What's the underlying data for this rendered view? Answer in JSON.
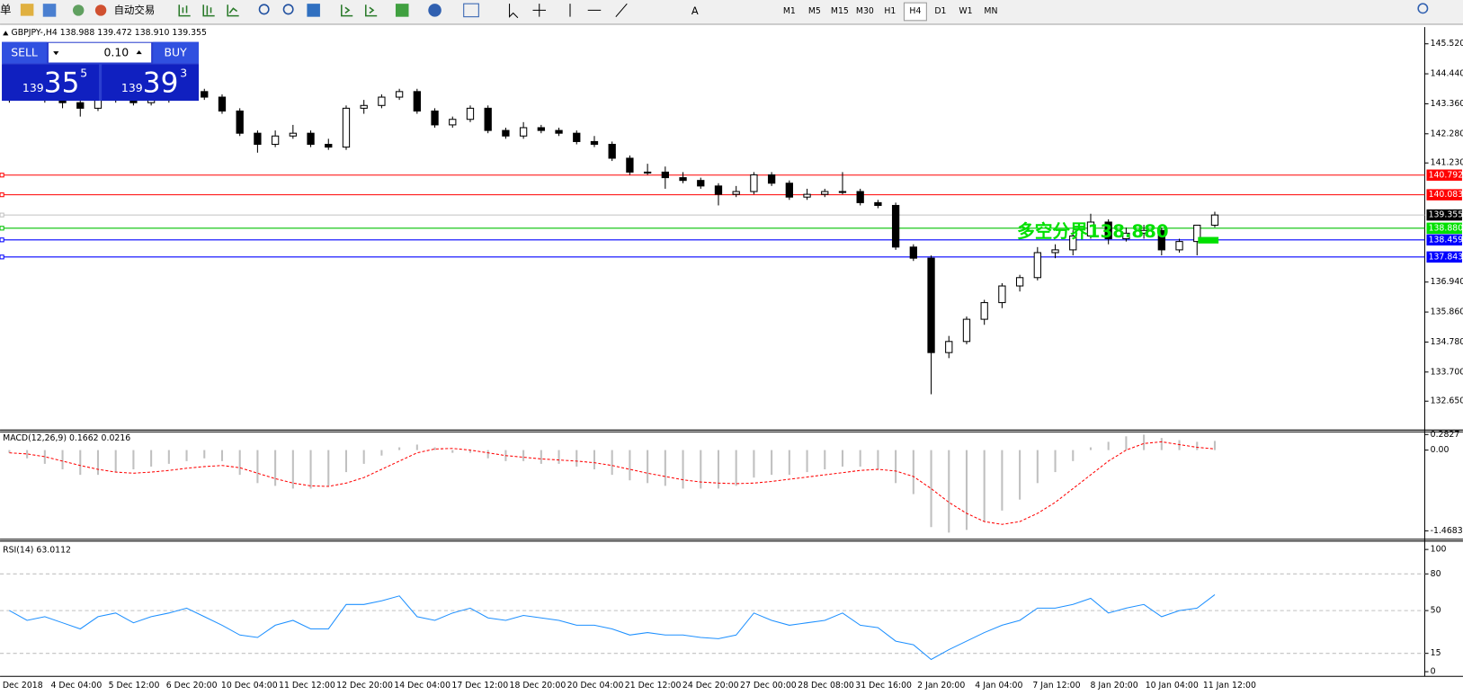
{
  "toolbar": {
    "partial_label": "单",
    "auto_trading": "自动交易",
    "timeframes": [
      "M1",
      "M5",
      "M15",
      "M30",
      "H1",
      "H4",
      "D1",
      "W1",
      "MN"
    ]
  },
  "trade_panel": {
    "sell": "SELL",
    "buy": "BUY",
    "lots": "0.10",
    "sell_price": {
      "prefix": "139",
      "pips": "35",
      "fraction": "5"
    },
    "buy_price": {
      "prefix": "139",
      "pips": "39",
      "fraction": "3"
    }
  },
  "chart": {
    "symbol_header": "GBPJPY-,H4  138.988 139.472 138.910 139.355",
    "ylim": [
      131.61,
      146.09
    ],
    "yticks": [
      {
        "value": 145.52,
        "label": "145.520"
      },
      {
        "value": 144.44,
        "label": "144.440"
      },
      {
        "value": 143.36,
        "label": "143.360"
      },
      {
        "value": 142.28,
        "label": "142.280"
      },
      {
        "value": 141.23,
        "label": "141.230"
      },
      {
        "value": 136.94,
        "label": "136.940"
      },
      {
        "value": 135.86,
        "label": "135.860"
      },
      {
        "value": 134.78,
        "label": "134.780"
      },
      {
        "value": 133.7,
        "label": "133.700"
      },
      {
        "value": 132.65,
        "label": "132.650"
      }
    ],
    "levels": [
      {
        "value": 140.792,
        "label": "140.792",
        "color": "#ff0000",
        "label_bg": "#ff0000"
      },
      {
        "value": 140.083,
        "label": "140.083",
        "color": "#ff0000",
        "label_bg": "#ff0000"
      },
      {
        "value": 139.355,
        "label": "139.355",
        "color": "#c0c0c0",
        "label_bg": "#000000"
      },
      {
        "value": 138.88,
        "label": "138.880",
        "color": "#00c000",
        "label_bg": "#00e000"
      },
      {
        "value": 138.459,
        "label": "138.459",
        "color": "#0000ff",
        "label_bg": "#0000ff"
      },
      {
        "value": 137.843,
        "label": "137.843",
        "color": "#0000ff",
        "label_bg": "#0000ff"
      }
    ],
    "annotation": "多空分界138.880",
    "ohlc": [
      [
        143.5,
        143.8,
        143.4,
        143.6
      ],
      [
        143.6,
        143.9,
        143.5,
        143.8
      ],
      [
        143.8,
        143.9,
        143.4,
        143.5
      ],
      [
        143.5,
        143.6,
        143.2,
        143.4
      ],
      [
        143.4,
        143.5,
        142.9,
        143.2
      ],
      [
        143.2,
        143.6,
        143.1,
        143.5
      ],
      [
        143.5,
        143.8,
        143.4,
        143.7
      ],
      [
        143.7,
        143.8,
        143.3,
        143.4
      ],
      [
        143.4,
        143.6,
        143.3,
        143.5
      ],
      [
        143.5,
        143.7,
        143.4,
        143.6
      ],
      [
        143.6,
        143.9,
        143.5,
        143.8
      ],
      [
        143.8,
        143.9,
        143.5,
        143.6
      ],
      [
        143.6,
        143.7,
        143.0,
        143.1
      ],
      [
        143.1,
        143.2,
        142.2,
        142.3
      ],
      [
        142.3,
        142.4,
        141.6,
        141.9
      ],
      [
        141.9,
        142.4,
        141.8,
        142.2
      ],
      [
        142.2,
        142.6,
        142.1,
        142.3
      ],
      [
        142.3,
        142.4,
        141.8,
        141.9
      ],
      [
        141.9,
        142.1,
        141.7,
        141.8
      ],
      [
        141.8,
        143.3,
        141.7,
        143.2
      ],
      [
        143.2,
        143.5,
        143.0,
        143.3
      ],
      [
        143.3,
        143.7,
        143.2,
        143.6
      ],
      [
        143.6,
        143.9,
        143.5,
        143.8
      ],
      [
        143.8,
        143.9,
        143.0,
        143.1
      ],
      [
        143.1,
        143.2,
        142.5,
        142.6
      ],
      [
        142.6,
        142.9,
        142.5,
        142.8
      ],
      [
        142.8,
        143.3,
        142.7,
        143.2
      ],
      [
        143.2,
        143.3,
        142.3,
        142.4
      ],
      [
        142.4,
        142.5,
        142.1,
        142.2
      ],
      [
        142.2,
        142.7,
        142.1,
        142.5
      ],
      [
        142.5,
        142.6,
        142.3,
        142.4
      ],
      [
        142.4,
        142.5,
        142.2,
        142.3
      ],
      [
        142.3,
        142.4,
        141.9,
        142.0
      ],
      [
        142.0,
        142.2,
        141.8,
        141.9
      ],
      [
        141.9,
        142.0,
        141.3,
        141.4
      ],
      [
        141.4,
        141.5,
        140.8,
        140.9
      ],
      [
        140.9,
        141.2,
        140.8,
        140.9
      ],
      [
        140.9,
        141.1,
        140.3,
        140.7
      ],
      [
        140.7,
        140.9,
        140.5,
        140.6
      ],
      [
        140.6,
        140.7,
        140.3,
        140.4
      ],
      [
        140.4,
        140.5,
        139.7,
        140.1
      ],
      [
        140.1,
        140.4,
        140.0,
        140.2
      ],
      [
        140.2,
        140.9,
        140.1,
        140.8
      ],
      [
        140.8,
        140.9,
        140.4,
        140.5
      ],
      [
        140.5,
        140.6,
        139.9,
        140.0
      ],
      [
        140.0,
        140.3,
        139.9,
        140.1
      ],
      [
        140.1,
        140.3,
        140.0,
        140.2
      ],
      [
        140.2,
        140.9,
        140.1,
        140.2
      ],
      [
        140.2,
        140.3,
        139.7,
        139.8
      ],
      [
        139.8,
        139.9,
        139.6,
        139.7
      ],
      [
        139.7,
        139.8,
        138.1,
        138.2
      ],
      [
        138.2,
        138.3,
        137.7,
        137.8
      ],
      [
        137.8,
        137.9,
        132.9,
        134.4
      ],
      [
        134.4,
        135.0,
        134.2,
        134.8
      ],
      [
        134.8,
        135.7,
        134.7,
        135.6
      ],
      [
        135.6,
        136.3,
        135.4,
        136.2
      ],
      [
        136.2,
        136.9,
        136.0,
        136.8
      ],
      [
        136.8,
        137.2,
        136.6,
        137.1
      ],
      [
        137.1,
        138.2,
        137.0,
        138.0
      ],
      [
        138.0,
        138.3,
        137.8,
        138.1
      ],
      [
        138.1,
        138.8,
        137.9,
        138.6
      ],
      [
        138.6,
        139.4,
        138.5,
        139.1
      ],
      [
        139.1,
        139.2,
        138.3,
        138.5
      ],
      [
        138.5,
        138.9,
        138.4,
        138.7
      ],
      [
        138.7,
        139.0,
        138.5,
        138.8
      ],
      [
        138.8,
        138.9,
        137.9,
        138.1
      ],
      [
        138.1,
        138.5,
        138.0,
        138.4
      ],
      [
        138.4,
        139.0,
        137.9,
        138.988
      ],
      [
        138.988,
        139.472,
        138.91,
        139.355
      ]
    ],
    "x_labels": [
      "2 Dec 2018",
      "4 Dec 04:00",
      "5 Dec 12:00",
      "6 Dec 20:00",
      "10 Dec 04:00",
      "11 Dec 12:00",
      "12 Dec 20:00",
      "14 Dec 04:00",
      "17 Dec 12:00",
      "18 Dec 20:00",
      "20 Dec 04:00",
      "21 Dec 12:00",
      "24 Dec 20:00",
      "27 Dec 00:00",
      "28 Dec 08:00",
      "31 Dec 16:00",
      "2 Jan 20:00",
      "4 Jan 04:00",
      "7 Jan 12:00",
      "8 Jan 20:00",
      "10 Jan 04:00",
      "11 Jan 12:00"
    ]
  },
  "macd": {
    "title": "MACD(12,26,9) 0.1662 0.0216",
    "ylim": [
      -1.62,
      0.33
    ],
    "yticks": [
      {
        "value": 0.2827,
        "label": "0.2827"
      },
      {
        "value": 0,
        "label": "0.00"
      },
      {
        "value": -1.4683,
        "label": "-1.4683"
      }
    ],
    "histogram": [
      -0.05,
      -0.15,
      -0.25,
      -0.35,
      -0.45,
      -0.45,
      -0.4,
      -0.35,
      -0.3,
      -0.25,
      -0.2,
      -0.15,
      -0.2,
      -0.45,
      -0.6,
      -0.65,
      -0.7,
      -0.7,
      -0.65,
      -0.4,
      -0.25,
      -0.1,
      0.05,
      0.1,
      0.05,
      -0.05,
      -0.05,
      -0.15,
      -0.2,
      -0.2,
      -0.25,
      -0.25,
      -0.3,
      -0.35,
      -0.45,
      -0.55,
      -0.6,
      -0.65,
      -0.7,
      -0.7,
      -0.7,
      -0.65,
      -0.5,
      -0.45,
      -0.45,
      -0.4,
      -0.35,
      -0.3,
      -0.3,
      -0.35,
      -0.6,
      -0.8,
      -1.4,
      -1.5,
      -1.45,
      -1.3,
      -1.1,
      -0.9,
      -0.6,
      -0.4,
      -0.2,
      0.05,
      0.15,
      0.25,
      0.28,
      0.22,
      0.18,
      0.15,
      0.1662
    ],
    "signal": [
      -0.05,
      -0.07,
      -0.12,
      -0.2,
      -0.28,
      -0.35,
      -0.4,
      -0.42,
      -0.4,
      -0.37,
      -0.33,
      -0.3,
      -0.28,
      -0.32,
      -0.42,
      -0.52,
      -0.6,
      -0.65,
      -0.66,
      -0.6,
      -0.5,
      -0.35,
      -0.2,
      -0.05,
      0.02,
      0.03,
      0.0,
      -0.05,
      -0.1,
      -0.13,
      -0.16,
      -0.18,
      -0.2,
      -0.23,
      -0.28,
      -0.35,
      -0.42,
      -0.48,
      -0.54,
      -0.58,
      -0.6,
      -0.61,
      -0.6,
      -0.57,
      -0.53,
      -0.49,
      -0.45,
      -0.41,
      -0.37,
      -0.35,
      -0.38,
      -0.48,
      -0.7,
      -0.95,
      -1.15,
      -1.3,
      -1.35,
      -1.3,
      -1.15,
      -0.95,
      -0.7,
      -0.45,
      -0.2,
      0.0,
      0.12,
      0.15,
      0.1,
      0.05,
      0.0216
    ]
  },
  "rsi": {
    "title": "RSI(14) 63.0112",
    "ylim": [
      0,
      100
    ],
    "yticks": [
      100,
      80,
      50,
      15,
      0
    ],
    "levels": [
      80,
      50,
      15
    ],
    "values": [
      50,
      42,
      45,
      40,
      35,
      45,
      48,
      40,
      45,
      48,
      52,
      45,
      38,
      30,
      28,
      38,
      42,
      35,
      35,
      55,
      55,
      58,
      62,
      45,
      42,
      48,
      52,
      44,
      42,
      46,
      44,
      42,
      38,
      38,
      35,
      30,
      32,
      30,
      30,
      28,
      27,
      30,
      48,
      42,
      38,
      40,
      42,
      48,
      38,
      36,
      25,
      22,
      10,
      18,
      25,
      32,
      38,
      42,
      52,
      52,
      55,
      60,
      48,
      52,
      55,
      45,
      50,
      52,
      63.0112
    ]
  }
}
